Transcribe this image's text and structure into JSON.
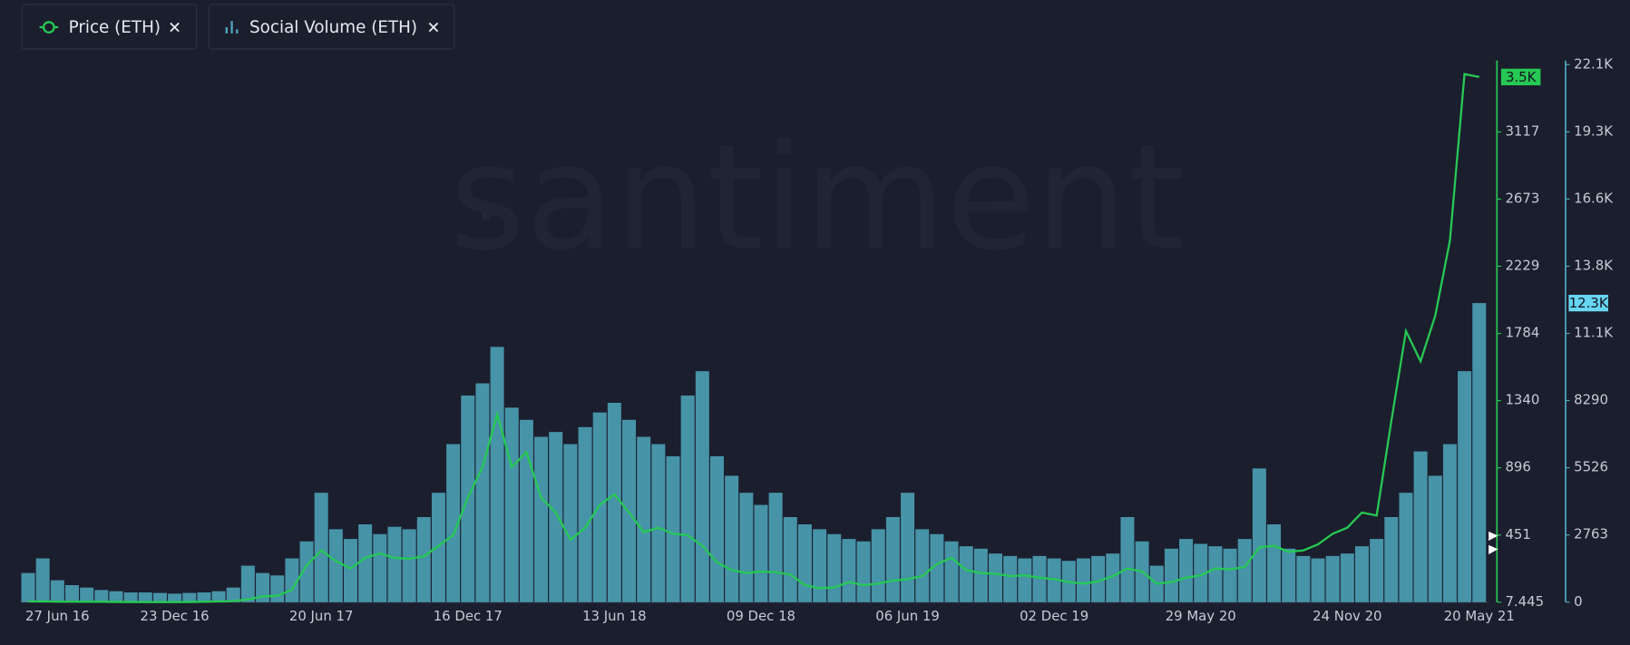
{
  "chart_data": {
    "type": "combo",
    "watermark": "santiment",
    "categories": [
      null,
      null,
      "27 Jun 16",
      null,
      null,
      null,
      null,
      null,
      null,
      null,
      "23 Dec 16",
      null,
      null,
      null,
      null,
      null,
      null,
      null,
      null,
      null,
      "20 Jun 17",
      null,
      null,
      null,
      null,
      null,
      null,
      null,
      null,
      null,
      "16 Dec 17",
      null,
      null,
      null,
      null,
      null,
      null,
      null,
      null,
      null,
      "13 Jun 18",
      null,
      null,
      null,
      null,
      null,
      null,
      null,
      null,
      null,
      "09 Dec 18",
      null,
      null,
      null,
      null,
      null,
      null,
      null,
      null,
      null,
      "06 Jun 19",
      null,
      null,
      null,
      null,
      null,
      null,
      null,
      null,
      null,
      "02 Dec 19",
      null,
      null,
      null,
      null,
      null,
      null,
      null,
      null,
      null,
      "29 May 20",
      null,
      null,
      null,
      null,
      null,
      null,
      null,
      null,
      null,
      "24 Nov 20",
      null,
      null,
      null,
      null,
      null,
      null,
      null,
      null,
      "20 May 21"
    ],
    "series": [
      {
        "name": "Price (ETH)",
        "kind": "line",
        "axis": "y",
        "color": "#26c953",
        "last_label": "3.5K",
        "values": [
          12,
          13,
          11,
          11,
          10,
          10,
          9,
          9,
          8,
          8,
          8,
          9,
          10,
          12,
          15,
          25,
          45,
          50,
          90,
          250,
          350,
          280,
          230,
          300,
          330,
          300,
          295,
          310,
          380,
          450,
          700,
          900,
          1250,
          900,
          1000,
          700,
          600,
          420,
          500,
          650,
          720,
          600,
          470,
          500,
          460,
          450,
          380,
          270,
          220,
          200,
          210,
          205,
          190,
          120,
          100,
          105,
          140,
          120,
          130,
          150,
          160,
          180,
          260,
          300,
          220,
          200,
          195,
          180,
          185,
          170,
          160,
          140,
          130,
          145,
          180,
          230,
          210,
          130,
          140,
          170,
          185,
          230,
          225,
          240,
          370,
          380,
          340,
          350,
          390,
          460,
          500,
          600,
          580,
          1200,
          1800,
          1600,
          1900,
          2400,
          3500,
          3480
        ]
      },
      {
        "name": "Social Volume (ETH)",
        "kind": "bar",
        "axis": "y2",
        "color": "#4fa8be",
        "last_label": "12.3K",
        "values": [
          1200,
          1800,
          900,
          700,
          600,
          500,
          450,
          400,
          400,
          380,
          350,
          380,
          400,
          450,
          600,
          1500,
          1200,
          1100,
          1800,
          2500,
          4500,
          3000,
          2600,
          3200,
          2800,
          3100,
          3000,
          3500,
          4500,
          6500,
          8500,
          9000,
          10500,
          8000,
          7500,
          6800,
          7000,
          6500,
          7200,
          7800,
          8200,
          7500,
          6800,
          6500,
          6000,
          8500,
          9500,
          6000,
          5200,
          4500,
          4000,
          4500,
          3500,
          3200,
          3000,
          2800,
          2600,
          2500,
          3000,
          3500,
          4500,
          3000,
          2800,
          2500,
          2300,
          2200,
          2000,
          1900,
          1800,
          1900,
          1800,
          1700,
          1800,
          1900,
          2000,
          3500,
          2500,
          1500,
          2200,
          2600,
          2400,
          2300,
          2200,
          2600,
          5500,
          3200,
          2200,
          1900,
          1800,
          1900,
          2000,
          2300,
          2600,
          3500,
          4500,
          6200,
          5200,
          6500,
          9500,
          12300
        ]
      }
    ],
    "ylim": [
      7.445,
      3561.6
    ],
    "yticks": [
      7.445,
      451,
      896,
      1340,
      1784,
      2229,
      2673,
      3117
    ],
    "y2lim": [
      0,
      22105
    ],
    "y2ticks": [
      0,
      2763,
      5526,
      8290,
      {
        "value": 11053,
        "label": "11.1K"
      },
      {
        "value": 13816,
        "label": "13.8K"
      },
      {
        "value": 16579,
        "label": "16.6K"
      },
      {
        "value": 19342,
        "label": "19.3K"
      },
      {
        "value": 22105,
        "label": "22.1K"
      }
    ]
  }
}
